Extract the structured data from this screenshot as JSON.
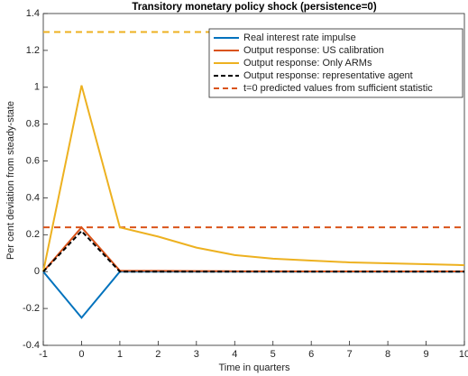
{
  "chart_data": {
    "type": "line",
    "title": "Transitory monetary policy shock (persistence=0)",
    "x_label": "Time in quarters",
    "y_label": "Per cent deviation from steady-state",
    "x": [
      -1,
      0,
      1,
      2,
      3,
      4,
      5,
      6,
      7,
      8,
      9,
      10
    ],
    "series": [
      {
        "name": "Real interest rate impulse",
        "color": "#0072bd",
        "dash": false,
        "values": [
          0,
          -0.25,
          0,
          0,
          0,
          0,
          0,
          0,
          0,
          0,
          0,
          0
        ]
      },
      {
        "name": "Output response: US calibration",
        "color": "#d95319",
        "dash": false,
        "values": [
          0,
          0.24,
          0.005,
          0.004,
          0.003,
          0.002,
          0.002,
          0.001,
          0.001,
          0.001,
          0.001,
          0.001
        ]
      },
      {
        "name": "Output response: Only ARMs",
        "color": "#edb120",
        "dash": false,
        "values": [
          0,
          1.01,
          0.24,
          0.19,
          0.13,
          0.09,
          0.07,
          0.06,
          0.05,
          0.045,
          0.04,
          0.035
        ]
      },
      {
        "name": "Output response: representative agent",
        "color": "#000000",
        "dash": true,
        "values": [
          0,
          0.22,
          0,
          0,
          0,
          0,
          0,
          0,
          0,
          0,
          0,
          0
        ]
      }
    ],
    "hlines": [
      {
        "name": "t=0 predicted values from sufficient statistic",
        "color": "#d95319",
        "value": 0.24
      },
      {
        "color": "#edb120",
        "value": 1.3
      }
    ],
    "xlim": [
      -1,
      10
    ],
    "xticks": [
      -1,
      0,
      1,
      2,
      3,
      4,
      5,
      6,
      7,
      8,
      9,
      10
    ],
    "ylim": [
      -0.4,
      1.4
    ],
    "yticks": [
      -0.4,
      -0.2,
      0,
      0.2,
      0.4,
      0.6,
      0.8,
      1,
      1.2,
      1.4
    ],
    "grid": false,
    "legend": "top-right"
  }
}
